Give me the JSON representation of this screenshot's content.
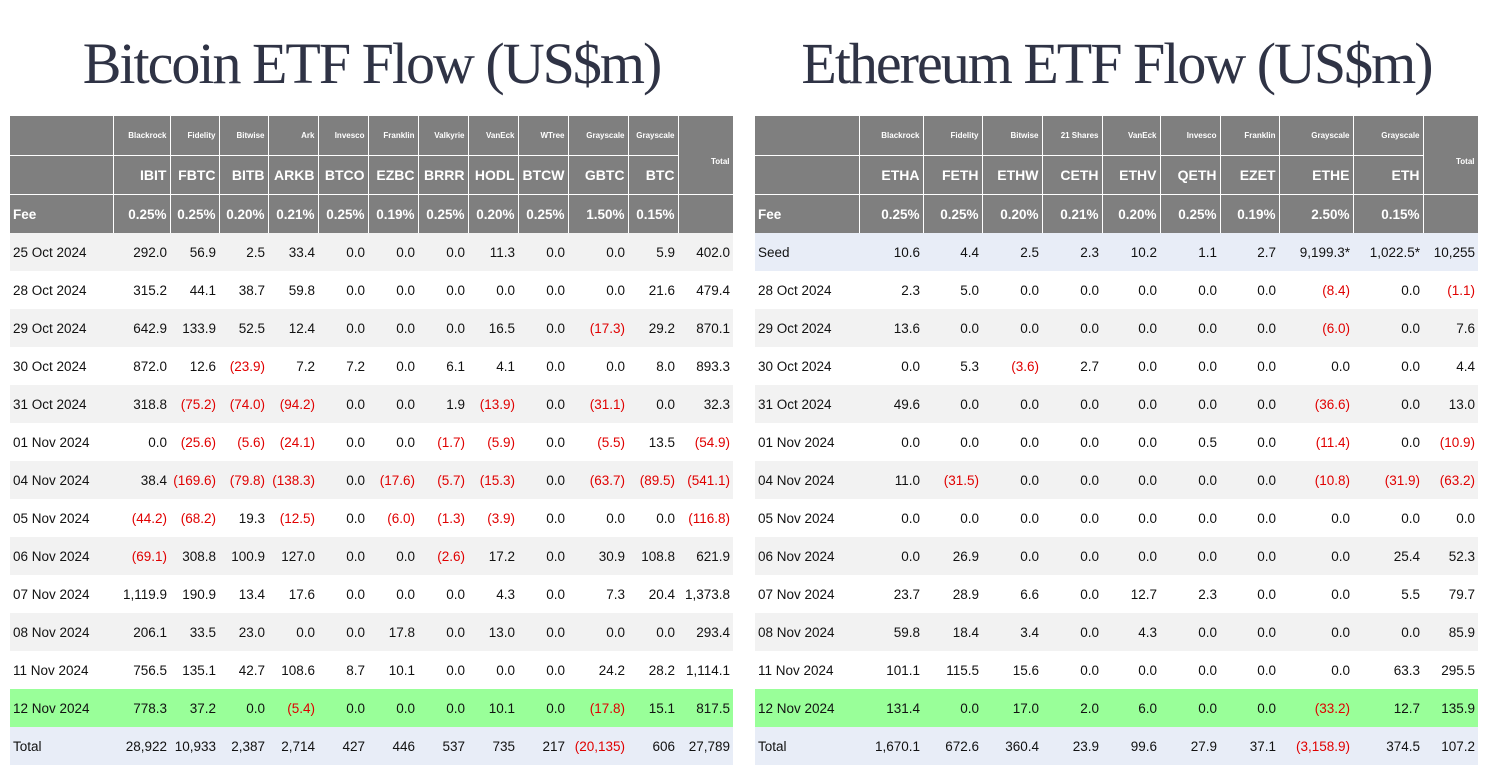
{
  "bitcoin": {
    "title": "Bitcoin ETF Flow (US$m)",
    "issuers": [
      "Blackrock",
      "Fidelity",
      "Bitwise",
      "Ark",
      "Invesco",
      "Franklin",
      "Valkyrie",
      "VanEck",
      "WTree",
      "Grayscale",
      "Grayscale"
    ],
    "tickers": [
      "IBIT",
      "FBTC",
      "BITB",
      "ARKB",
      "BTCO",
      "EZBC",
      "BRRR",
      "HODL",
      "BTCW",
      "GBTC",
      "BTC"
    ],
    "total_label": "Total",
    "fee_label": "Fee",
    "fees": [
      "0.25%",
      "0.25%",
      "0.20%",
      "0.21%",
      "0.25%",
      "0.19%",
      "0.25%",
      "0.20%",
      "0.25%",
      "1.50%",
      "0.15%",
      ""
    ],
    "rows": [
      {
        "label": "25 Oct 2024",
        "values": [
          "292.0",
          "56.9",
          "2.5",
          "33.4",
          "0.0",
          "0.0",
          "0.0",
          "11.3",
          "0.0",
          "0.0",
          "5.9",
          "402.0"
        ]
      },
      {
        "label": "28 Oct 2024",
        "values": [
          "315.2",
          "44.1",
          "38.7",
          "59.8",
          "0.0",
          "0.0",
          "0.0",
          "0.0",
          "0.0",
          "0.0",
          "21.6",
          "479.4"
        ]
      },
      {
        "label": "29 Oct 2024",
        "values": [
          "642.9",
          "133.9",
          "52.5",
          "12.4",
          "0.0",
          "0.0",
          "0.0",
          "16.5",
          "0.0",
          "(17.3)",
          "29.2",
          "870.1"
        ]
      },
      {
        "label": "30 Oct 2024",
        "values": [
          "872.0",
          "12.6",
          "(23.9)",
          "7.2",
          "7.2",
          "0.0",
          "6.1",
          "4.1",
          "0.0",
          "0.0",
          "8.0",
          "893.3"
        ]
      },
      {
        "label": "31 Oct 2024",
        "values": [
          "318.8",
          "(75.2)",
          "(74.0)",
          "(94.2)",
          "0.0",
          "0.0",
          "1.9",
          "(13.9)",
          "0.0",
          "(31.1)",
          "0.0",
          "32.3"
        ]
      },
      {
        "label": "01 Nov 2024",
        "values": [
          "0.0",
          "(25.6)",
          "(5.6)",
          "(24.1)",
          "0.0",
          "0.0",
          "(1.7)",
          "(5.9)",
          "0.0",
          "(5.5)",
          "13.5",
          "(54.9)"
        ]
      },
      {
        "label": "04 Nov 2024",
        "values": [
          "38.4",
          "(169.6)",
          "(79.8)",
          "(138.3)",
          "0.0",
          "(17.6)",
          "(5.7)",
          "(15.3)",
          "0.0",
          "(63.7)",
          "(89.5)",
          "(541.1)"
        ]
      },
      {
        "label": "05 Nov 2024",
        "values": [
          "(44.2)",
          "(68.2)",
          "19.3",
          "(12.5)",
          "0.0",
          "(6.0)",
          "(1.3)",
          "(3.9)",
          "0.0",
          "0.0",
          "0.0",
          "(116.8)"
        ]
      },
      {
        "label": "06 Nov 2024",
        "values": [
          "(69.1)",
          "308.8",
          "100.9",
          "127.0",
          "0.0",
          "0.0",
          "(2.6)",
          "17.2",
          "0.0",
          "30.9",
          "108.8",
          "621.9"
        ]
      },
      {
        "label": "07 Nov 2024",
        "values": [
          "1,119.9",
          "190.9",
          "13.4",
          "17.6",
          "0.0",
          "0.0",
          "0.0",
          "4.3",
          "0.0",
          "7.3",
          "20.4",
          "1,373.8"
        ]
      },
      {
        "label": "08 Nov 2024",
        "values": [
          "206.1",
          "33.5",
          "23.0",
          "0.0",
          "0.0",
          "17.8",
          "0.0",
          "13.0",
          "0.0",
          "0.0",
          "0.0",
          "293.4"
        ]
      },
      {
        "label": "11 Nov 2024",
        "values": [
          "756.5",
          "135.1",
          "42.7",
          "108.6",
          "8.7",
          "10.1",
          "0.0",
          "0.0",
          "0.0",
          "24.2",
          "28.2",
          "1,114.1"
        ]
      },
      {
        "label": "12 Nov 2024",
        "values": [
          "778.3",
          "37.2",
          "0.0",
          "(5.4)",
          "0.0",
          "0.0",
          "0.0",
          "10.1",
          "0.0",
          "(17.8)",
          "15.1",
          "817.5"
        ],
        "highlight": true
      },
      {
        "label": "Total",
        "values": [
          "28,922",
          "10,933",
          "2,387",
          "2,714",
          "427",
          "446",
          "537",
          "735",
          "217",
          "(20,135)",
          "606",
          "27,789"
        ],
        "total": true
      }
    ]
  },
  "ethereum": {
    "title": "Ethereum ETF Flow (US$m)",
    "issuers": [
      "Blackrock",
      "Fidelity",
      "Bitwise",
      "21 Shares",
      "VanEck",
      "Invesco",
      "Franklin",
      "Grayscale",
      "Grayscale"
    ],
    "tickers": [
      "ETHA",
      "FETH",
      "ETHW",
      "CETH",
      "ETHV",
      "QETH",
      "EZET",
      "ETHE",
      "ETH"
    ],
    "total_label": "Total",
    "fee_label": "Fee",
    "fees": [
      "0.25%",
      "0.25%",
      "0.20%",
      "0.21%",
      "0.20%",
      "0.25%",
      "0.19%",
      "2.50%",
      "0.15%",
      ""
    ],
    "rows": [
      {
        "label": "Seed",
        "values": [
          "10.6",
          "4.4",
          "2.5",
          "2.3",
          "10.2",
          "1.1",
          "2.7",
          "9,199.3*",
          "1,022.5*",
          "10,255"
        ],
        "seed": true
      },
      {
        "label": "28 Oct 2024",
        "values": [
          "2.3",
          "5.0",
          "0.0",
          "0.0",
          "0.0",
          "0.0",
          "0.0",
          "(8.4)",
          "0.0",
          "(1.1)"
        ]
      },
      {
        "label": "29 Oct 2024",
        "values": [
          "13.6",
          "0.0",
          "0.0",
          "0.0",
          "0.0",
          "0.0",
          "0.0",
          "(6.0)",
          "0.0",
          "7.6"
        ]
      },
      {
        "label": "30 Oct 2024",
        "values": [
          "0.0",
          "5.3",
          "(3.6)",
          "2.7",
          "0.0",
          "0.0",
          "0.0",
          "0.0",
          "0.0",
          "4.4"
        ]
      },
      {
        "label": "31 Oct 2024",
        "values": [
          "49.6",
          "0.0",
          "0.0",
          "0.0",
          "0.0",
          "0.0",
          "0.0",
          "(36.6)",
          "0.0",
          "13.0"
        ]
      },
      {
        "label": "01 Nov 2024",
        "values": [
          "0.0",
          "0.0",
          "0.0",
          "0.0",
          "0.0",
          "0.5",
          "0.0",
          "(11.4)",
          "0.0",
          "(10.9)"
        ]
      },
      {
        "label": "04 Nov 2024",
        "values": [
          "11.0",
          "(31.5)",
          "0.0",
          "0.0",
          "0.0",
          "0.0",
          "0.0",
          "(10.8)",
          "(31.9)",
          "(63.2)"
        ]
      },
      {
        "label": "05 Nov 2024",
        "values": [
          "0.0",
          "0.0",
          "0.0",
          "0.0",
          "0.0",
          "0.0",
          "0.0",
          "0.0",
          "0.0",
          "0.0"
        ]
      },
      {
        "label": "06 Nov 2024",
        "values": [
          "0.0",
          "26.9",
          "0.0",
          "0.0",
          "0.0",
          "0.0",
          "0.0",
          "0.0",
          "25.4",
          "52.3"
        ]
      },
      {
        "label": "07 Nov 2024",
        "values": [
          "23.7",
          "28.9",
          "6.6",
          "0.0",
          "12.7",
          "2.3",
          "0.0",
          "0.0",
          "5.5",
          "79.7"
        ]
      },
      {
        "label": "08 Nov 2024",
        "values": [
          "59.8",
          "18.4",
          "3.4",
          "0.0",
          "4.3",
          "0.0",
          "0.0",
          "0.0",
          "0.0",
          "85.9"
        ]
      },
      {
        "label": "11 Nov 2024",
        "values": [
          "101.1",
          "115.5",
          "15.6",
          "0.0",
          "0.0",
          "0.0",
          "0.0",
          "0.0",
          "63.3",
          "295.5"
        ]
      },
      {
        "label": "12 Nov 2024",
        "values": [
          "131.4",
          "0.0",
          "17.0",
          "2.0",
          "6.0",
          "0.0",
          "0.0",
          "(33.2)",
          "12.7",
          "135.9"
        ],
        "highlight": true
      },
      {
        "label": "Total",
        "values": [
          "1,670.1",
          "672.6",
          "360.4",
          "23.9",
          "99.6",
          "27.9",
          "37.1",
          "(3,158.9)",
          "374.5",
          "107.2"
        ],
        "total": true
      }
    ]
  },
  "colors": {
    "header_bg": "#7f7f7f",
    "negative": "#e00000",
    "highlight": "#99ff99",
    "total_bg": "#e8edf7",
    "title": "#2f3345"
  }
}
